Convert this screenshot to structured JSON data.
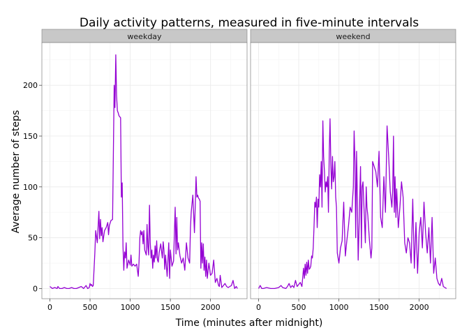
{
  "chart_data": {
    "type": "line",
    "title": "Daily activity patterns, measured in five-minute intervals",
    "xlabel": "Time (minutes after midnight)",
    "ylabel": "Average number of steps",
    "xlim": [
      -100,
      2455
    ],
    "ylim": [
      -10,
      242
    ],
    "x_ticks": [
      0,
      500,
      1000,
      1500,
      2000
    ],
    "y_ticks": [
      0,
      50,
      100,
      150,
      200
    ],
    "grid": true,
    "line_color": "#9400d3",
    "panels": [
      {
        "name": "weekday",
        "series": [
          {
            "x": [
              0,
              30,
              60,
              90,
              100,
              120,
              150,
              180,
              210,
              240,
              270,
              300,
              330,
              360,
              390,
              420,
              450,
              470,
              490,
              500,
              510,
              520,
              530,
              540,
              560,
              570,
              590,
              610,
              620,
              630,
              640,
              650,
              660,
              680,
              700,
              720,
              730,
              740,
              760,
              780,
              800,
              810,
              820,
              830,
              840,
              850,
              860,
              880,
              890,
              900,
              910,
              920,
              930,
              940,
              950,
              960,
              980,
              1000,
              1010,
              1020,
              1040,
              1060,
              1080,
              1100,
              1110,
              1120,
              1130,
              1140,
              1150,
              1160,
              1170,
              1180,
              1200,
              1210,
              1220,
              1230,
              1240,
              1250,
              1260,
              1270,
              1280,
              1290,
              1300,
              1310,
              1320,
              1330,
              1340,
              1350,
              1360,
              1380,
              1400,
              1410,
              1420,
              1430,
              1440,
              1460,
              1480,
              1490,
              1500,
              1520,
              1540,
              1550,
              1560,
              1570,
              1580,
              1590,
              1600,
              1620,
              1640,
              1660,
              1680,
              1700,
              1720,
              1740,
              1750,
              1760,
              1780,
              1800,
              1810,
              1820,
              1830,
              1840,
              1850,
              1860,
              1870,
              1880,
              1890,
              1900,
              1910,
              1920,
              1930,
              1940,
              1950,
              1960,
              1980,
              2000,
              2020,
              2040,
              2060,
              2080,
              2100,
              2110,
              2120,
              2140,
              2160,
              2180,
              2200,
              2220,
              2240,
              2260,
              2280,
              2300,
              2310,
              2320,
              2335
            ],
            "y": [
              2,
              0,
              1,
              0,
              2,
              0,
              0,
              1,
              0,
              0,
              1,
              0,
              0,
              1,
              2,
              0,
              3,
              0,
              1,
              5,
              3,
              4,
              2,
              3,
              35,
              57,
              45,
              76,
              49,
              68,
              52,
              60,
              46,
              57,
              60,
              65,
              53,
              62,
              67,
              68,
              200,
              178,
              230,
              190,
              175,
              173,
              170,
              168,
              90,
              104,
              42,
              18,
              36,
              30,
              45,
              20,
              28,
              23,
              33,
              22,
              24,
              22,
              24,
              12,
              26,
              50,
              57,
              53,
              56,
              44,
              57,
              38,
              33,
              63,
              41,
              33,
              82,
              45,
              30,
              38,
              20,
              33,
              26,
              42,
              30,
              47,
              28,
              26,
              35,
              44,
              30,
              46,
              38,
              19,
              33,
              12,
              45,
              10,
              38,
              22,
              27,
              55,
              80,
              34,
              70,
              38,
              45,
              32,
              25,
              30,
              18,
              45,
              30,
              25,
              60,
              75,
              92,
              55,
              82,
              110,
              90,
              92,
              89,
              88,
              86,
              20,
              45,
              25,
              44,
              18,
              31,
              12,
              28,
              10,
              25,
              13,
              15,
              28,
              6,
              10,
              3,
              2,
              13,
              1,
              3,
              5,
              2,
              1,
              2,
              3,
              8,
              0,
              1,
              2,
              0
            ]
          }
        ]
      },
      {
        "name": "weekend",
        "series": [
          {
            "x": [
              0,
              20,
              40,
              60,
              100,
              150,
              200,
              250,
              280,
              300,
              340,
              360,
              380,
              400,
              420,
              440,
              460,
              480,
              500,
              520,
              540,
              560,
              570,
              580,
              590,
              600,
              610,
              620,
              630,
              640,
              650,
              660,
              670,
              680,
              690,
              700,
              710,
              720,
              730,
              740,
              750,
              760,
              770,
              780,
              790,
              800,
              810,
              820,
              830,
              840,
              850,
              860,
              870,
              880,
              890,
              900,
              910,
              920,
              930,
              940,
              950,
              960,
              970,
              980,
              1000,
              1020,
              1040,
              1060,
              1080,
              1100,
              1120,
              1140,
              1160,
              1180,
              1190,
              1200,
              1210,
              1220,
              1230,
              1240,
              1250,
              1260,
              1270,
              1280,
              1290,
              1300,
              1310,
              1320,
              1330,
              1340,
              1350,
              1360,
              1380,
              1400,
              1410,
              1420,
              1440,
              1460,
              1480,
              1500,
              1520,
              1540,
              1560,
              1580,
              1600,
              1620,
              1640,
              1660,
              1670,
              1680,
              1690,
              1700,
              1710,
              1720,
              1740,
              1760,
              1780,
              1800,
              1820,
              1840,
              1860,
              1880,
              1900,
              1920,
              1940,
              1960,
              1980,
              2000,
              2020,
              2040,
              2060,
              2080,
              2100,
              2120,
              2140,
              2160,
              2180,
              2200,
              2220,
              2240,
              2260,
              2280,
              2300,
              2320,
              2340
            ],
            "y": [
              0,
              3,
              0,
              0,
              1,
              0,
              0,
              1,
              3,
              1,
              0,
              2,
              5,
              1,
              3,
              1,
              8,
              2,
              4,
              6,
              2,
              20,
              10,
              24,
              13,
              26,
              15,
              28,
              19,
              20,
              22,
              32,
              30,
              40,
              60,
              85,
              80,
              90,
              60,
              88,
              80,
              112,
              100,
              125,
              80,
              165,
              130,
              115,
              95,
              105,
              100,
              110,
              75,
              135,
              167,
              120,
              98,
              130,
              105,
              110,
              125,
              90,
              80,
              35,
              25,
              40,
              47,
              85,
              32,
              48,
              62,
              80,
              75,
              100,
              155,
              125,
              50,
              135,
              90,
              28,
              55,
              90,
              120,
              40,
              100,
              105,
              85,
              65,
              45,
              100,
              80,
              72,
              48,
              30,
              40,
              125,
              120,
              115,
              100,
              135,
              70,
              60,
              110,
              75,
              160,
              130,
              95,
              80,
              98,
              150,
              75,
              110,
              70,
              98,
              60,
              80,
              105,
              90,
              45,
              35,
              50,
              45,
              25,
              88,
              20,
              65,
              15,
              55,
              70,
              40,
              85,
              55,
              35,
              60,
              25,
              70,
              15,
              30,
              10,
              5,
              3,
              10,
              2,
              1,
              0
            ]
          }
        ]
      }
    ]
  }
}
